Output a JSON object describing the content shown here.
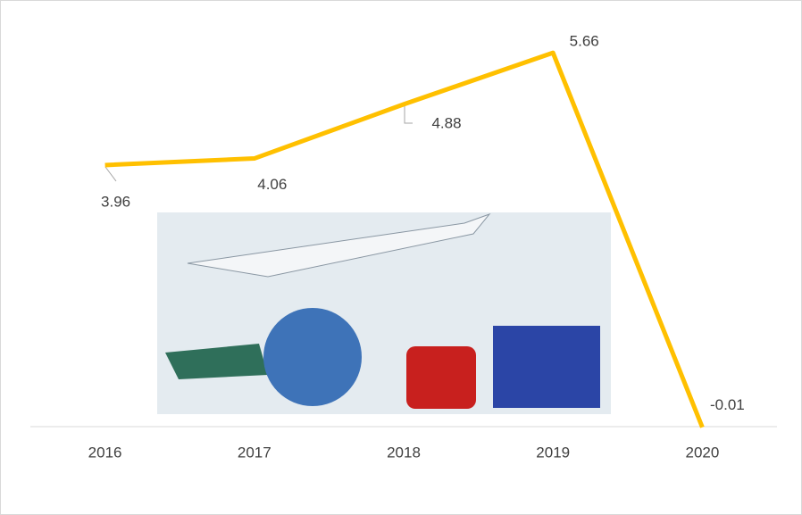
{
  "chart_data": {
    "type": "line",
    "categories": [
      "2016",
      "2017",
      "2018",
      "2019",
      "2020"
    ],
    "values": [
      3.96,
      4.06,
      4.88,
      5.66,
      -0.01
    ],
    "color": "#ffc000",
    "ylim": [
      0,
      6
    ]
  }
}
